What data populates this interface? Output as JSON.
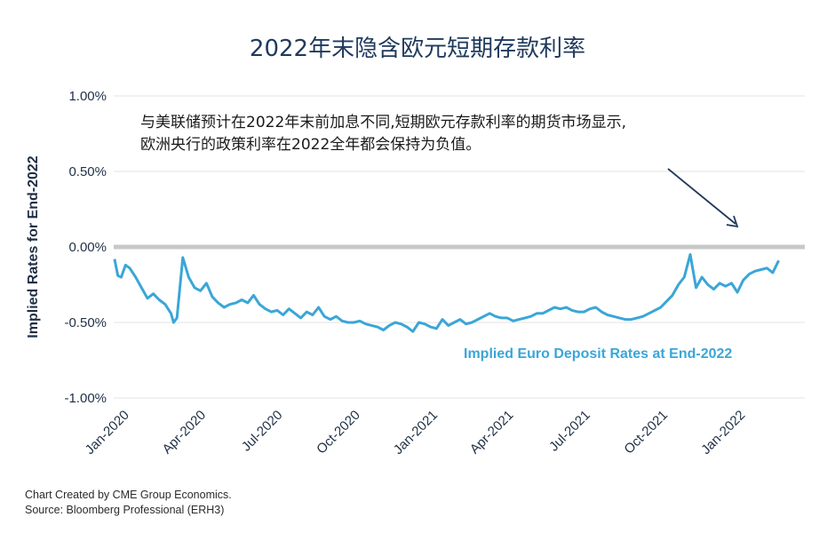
{
  "chart_data": {
    "type": "line",
    "title": "2022年末隐含欧元短期存款利率",
    "ylabel": "Implied Rates for End-2022",
    "ylim": [
      -1.0,
      1.0
    ],
    "yticks": [
      "1.00%",
      "0.50%",
      "0.00%",
      "-0.50%",
      "-1.00%"
    ],
    "ytick_values": [
      1.0,
      0.5,
      0.0,
      -0.5,
      -1.0
    ],
    "xticks": [
      "Jan-2020",
      "Apr-2020",
      "Jul-2020",
      "Oct-2020",
      "Jan-2021",
      "Apr-2021",
      "Jul-2021",
      "Oct-2021",
      "Jan-2022"
    ],
    "x_start": "2020-01-01",
    "x_end": "2022-03-31",
    "grid": true,
    "series": [
      {
        "name": "Implied Euro Deposit Rates at End-2022",
        "color": "#3aa6d8",
        "x": [
          "2020-01-02",
          "2020-01-06",
          "2020-01-10",
          "2020-01-15",
          "2020-01-20",
          "2020-01-27",
          "2020-02-03",
          "2020-02-10",
          "2020-02-17",
          "2020-02-24",
          "2020-03-02",
          "2020-03-09",
          "2020-03-12",
          "2020-03-16",
          "2020-03-19",
          "2020-03-23",
          "2020-03-30",
          "2020-04-06",
          "2020-04-13",
          "2020-04-20",
          "2020-04-27",
          "2020-05-04",
          "2020-05-11",
          "2020-05-18",
          "2020-05-25",
          "2020-06-01",
          "2020-06-08",
          "2020-06-15",
          "2020-06-22",
          "2020-06-29",
          "2020-07-06",
          "2020-07-13",
          "2020-07-20",
          "2020-07-27",
          "2020-08-03",
          "2020-08-10",
          "2020-08-17",
          "2020-08-24",
          "2020-08-31",
          "2020-09-07",
          "2020-09-14",
          "2020-09-21",
          "2020-09-28",
          "2020-10-05",
          "2020-10-12",
          "2020-10-19",
          "2020-10-26",
          "2020-11-02",
          "2020-11-09",
          "2020-11-16",
          "2020-11-23",
          "2020-11-30",
          "2020-12-07",
          "2020-12-14",
          "2020-12-21",
          "2020-12-28",
          "2021-01-04",
          "2021-01-11",
          "2021-01-18",
          "2021-01-25",
          "2021-02-01",
          "2021-02-08",
          "2021-02-15",
          "2021-02-22",
          "2021-03-01",
          "2021-03-08",
          "2021-03-15",
          "2021-03-22",
          "2021-03-29",
          "2021-04-05",
          "2021-04-12",
          "2021-04-19",
          "2021-04-26",
          "2021-05-03",
          "2021-05-10",
          "2021-05-17",
          "2021-05-24",
          "2021-05-31",
          "2021-06-07",
          "2021-06-14",
          "2021-06-21",
          "2021-06-28",
          "2021-07-05",
          "2021-07-12",
          "2021-07-19",
          "2021-07-26",
          "2021-08-02",
          "2021-08-09",
          "2021-08-16",
          "2021-08-23",
          "2021-08-30",
          "2021-09-06",
          "2021-09-13",
          "2021-09-20",
          "2021-09-27",
          "2021-10-04",
          "2021-10-11",
          "2021-10-18",
          "2021-10-25",
          "2021-11-01",
          "2021-11-08",
          "2021-11-15",
          "2021-11-22",
          "2021-11-29",
          "2021-12-06",
          "2021-12-13",
          "2021-12-20",
          "2021-12-27",
          "2022-01-03",
          "2022-01-10",
          "2022-01-17",
          "2022-01-24",
          "2022-01-31",
          "2022-02-07",
          "2022-02-14",
          "2022-02-21",
          "2022-02-28"
        ],
        "values": [
          -0.08,
          -0.19,
          -0.2,
          -0.12,
          -0.14,
          -0.2,
          -0.27,
          -0.34,
          -0.31,
          -0.35,
          -0.38,
          -0.44,
          -0.5,
          -0.47,
          -0.3,
          -0.07,
          -0.2,
          -0.27,
          -0.29,
          -0.24,
          -0.33,
          -0.37,
          -0.4,
          -0.38,
          -0.37,
          -0.35,
          -0.37,
          -0.32,
          -0.38,
          -0.41,
          -0.43,
          -0.42,
          -0.45,
          -0.41,
          -0.44,
          -0.47,
          -0.43,
          -0.45,
          -0.4,
          -0.46,
          -0.48,
          -0.46,
          -0.49,
          -0.5,
          -0.5,
          -0.49,
          -0.51,
          -0.52,
          -0.53,
          -0.55,
          -0.52,
          -0.5,
          -0.51,
          -0.53,
          -0.56,
          -0.5,
          -0.51,
          -0.53,
          -0.54,
          -0.48,
          -0.52,
          -0.5,
          -0.48,
          -0.51,
          -0.5,
          -0.48,
          -0.46,
          -0.44,
          -0.46,
          -0.47,
          -0.47,
          -0.49,
          -0.48,
          -0.47,
          -0.46,
          -0.44,
          -0.44,
          -0.42,
          -0.4,
          -0.41,
          -0.4,
          -0.42,
          -0.43,
          -0.43,
          -0.41,
          -0.4,
          -0.43,
          -0.45,
          -0.46,
          -0.47,
          -0.48,
          -0.48,
          -0.47,
          -0.46,
          -0.44,
          -0.42,
          -0.4,
          -0.36,
          -0.32,
          -0.25,
          -0.2,
          -0.05,
          -0.27,
          -0.2,
          -0.25,
          -0.28,
          -0.24,
          -0.26,
          -0.24,
          -0.3,
          -0.22,
          -0.18,
          -0.16,
          -0.15,
          -0.14,
          -0.17,
          -0.09
        ]
      }
    ],
    "annotation": {
      "line1": "与美联储预计在2022年末前加息不同,短期欧元存款利率的期货市场显示,",
      "line2": "欧洲央行的政策利率在2022全年都会保持为负值。"
    }
  },
  "footer": {
    "credit": "Chart Created by CME Group Economics.",
    "source": "Source:  Bloomberg Professional (ERH3)"
  }
}
